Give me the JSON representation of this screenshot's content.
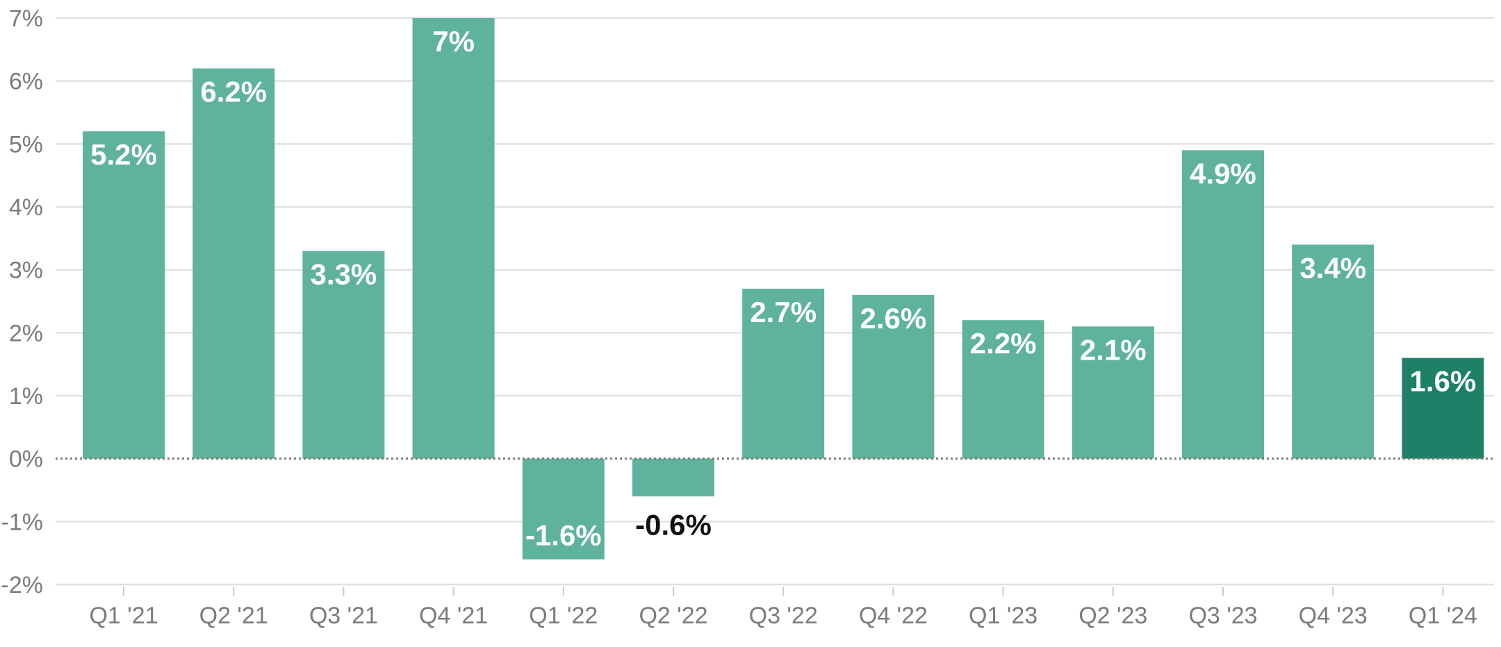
{
  "chart_data": {
    "type": "bar",
    "title": "",
    "xlabel": "",
    "ylabel": "",
    "categories": [
      "Q1 '21",
      "Q2 '21",
      "Q3 '21",
      "Q4 '21",
      "Q1 '22",
      "Q2 '22",
      "Q3 '22",
      "Q4 '22",
      "Q1 '23",
      "Q2 '23",
      "Q3 '23",
      "Q4 '23",
      "Q1 '24"
    ],
    "values": [
      5.2,
      6.2,
      3.3,
      7,
      -1.6,
      -0.6,
      2.7,
      2.6,
      2.2,
      2.1,
      4.9,
      3.4,
      1.6
    ],
    "data_labels": [
      "5.2%",
      "6.2%",
      "3.3%",
      "7%",
      "-1.6%",
      "-0.6%",
      "2.7%",
      "2.6%",
      "2.2%",
      "2.1%",
      "4.9%",
      "3.4%",
      "1.6%"
    ],
    "ylim": [
      -2,
      7
    ],
    "yticks": [
      7,
      6,
      5,
      4,
      3,
      2,
      1,
      0,
      -1,
      -2
    ],
    "ytick_labels": [
      "7%",
      "6%",
      "5%",
      "4%",
      "3%",
      "2%",
      "1%",
      "0%",
      "-1%",
      "-2%"
    ],
    "highlight_index": 12,
    "grid": true,
    "legend": "none",
    "colors": {
      "bar": "#5fb39c",
      "bar_highlight": "#1f8068",
      "label_inside": "#ffffff",
      "label_outside": "#111111"
    }
  }
}
